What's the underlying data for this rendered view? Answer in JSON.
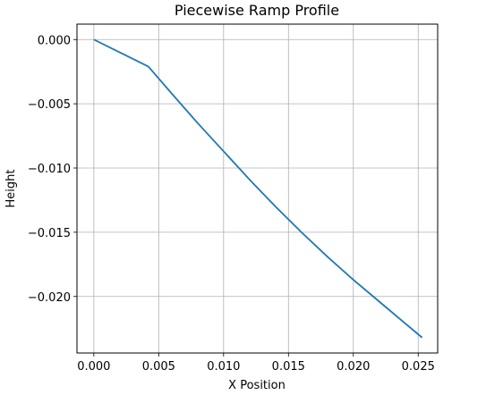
{
  "chart_data": {
    "type": "line",
    "title": "Piecewise Ramp Profile",
    "xlabel": "X Position",
    "ylabel": "Height",
    "xlim": [
      -0.0013,
      0.0265
    ],
    "ylim": [
      -0.0244,
      0.0012
    ],
    "grid": true,
    "x_ticks": [
      0.0,
      0.005,
      0.01,
      0.015,
      0.02,
      0.025
    ],
    "x_tick_labels": [
      "0.000",
      "0.005",
      "0.010",
      "0.015",
      "0.020",
      "0.025"
    ],
    "y_ticks": [
      0.0,
      -0.005,
      -0.01,
      -0.015,
      -0.02
    ],
    "y_tick_labels": [
      "0.000",
      "−0.005",
      "−0.010",
      "−0.015",
      "−0.020"
    ],
    "series": [
      {
        "color": "#1f77b4",
        "x": [
          0.0,
          0.0042,
          0.006,
          0.008,
          0.01,
          0.012,
          0.014,
          0.016,
          0.018,
          0.02,
          0.022,
          0.024,
          0.0253
        ],
        "y": [
          0.0,
          -0.0021,
          -0.0042,
          -0.0065,
          -0.0087,
          -0.0109,
          -0.013,
          -0.015,
          -0.0169,
          -0.0187,
          -0.0204,
          -0.0221,
          -0.0232
        ]
      }
    ]
  }
}
